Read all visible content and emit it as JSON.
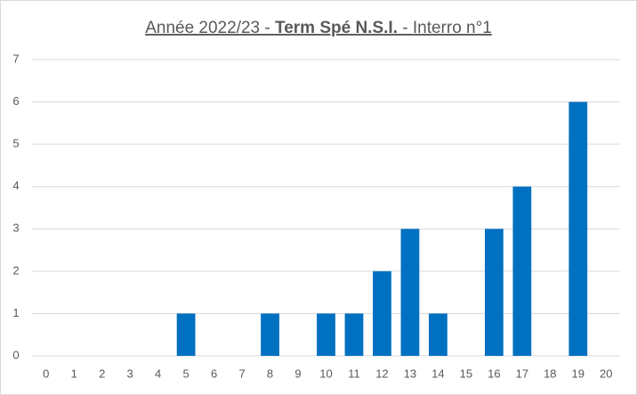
{
  "chart_data": {
    "type": "bar",
    "title_runs": [
      {
        "text": "Année 2022/23 - ",
        "bold": false
      },
      {
        "text": "Term Spé N.S.I.",
        "bold": true
      },
      {
        "text": " - Interro n°1",
        "bold": false
      }
    ],
    "categories": [
      "0",
      "1",
      "2",
      "3",
      "4",
      "5",
      "6",
      "7",
      "8",
      "9",
      "10",
      "11",
      "12",
      "13",
      "14",
      "15",
      "16",
      "17",
      "18",
      "19",
      "20"
    ],
    "values": [
      0,
      0,
      0,
      0,
      0,
      1,
      0,
      0,
      1,
      0,
      1,
      1,
      2,
      3,
      1,
      0,
      3,
      4,
      0,
      6,
      0
    ],
    "color": "#0070c0",
    "ylim": [
      0,
      7
    ],
    "yticks": [
      0,
      1,
      2,
      3,
      4,
      5,
      6,
      7
    ],
    "grid": true
  }
}
